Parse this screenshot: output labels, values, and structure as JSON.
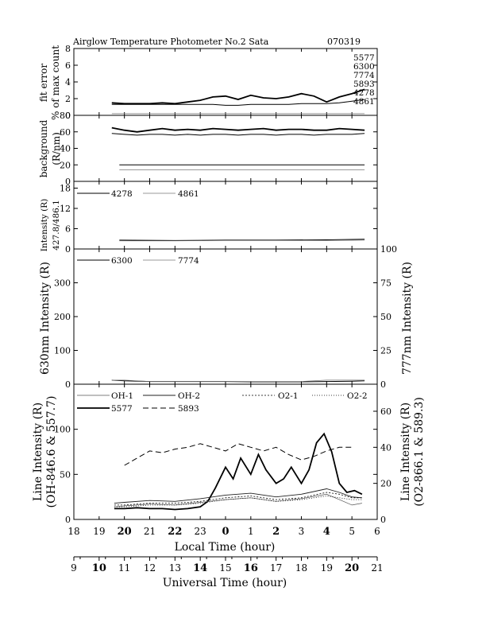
{
  "title": "Airglow Temperature Photometer No.2  Sata",
  "date": "070319",
  "chart_data": [
    {
      "type": "line",
      "ylabel_lines": [
        "fit error",
        "% of max count"
      ],
      "ylim": [
        0,
        8
      ],
      "yticks": [
        0,
        2,
        4,
        6,
        8
      ],
      "side_legend": [
        "5577",
        "6300",
        "7774",
        "5893",
        "4278",
        "4861"
      ],
      "series": [
        {
          "name": "5577",
          "x": [
            19.5,
            20.0,
            20.5,
            21.0,
            21.5,
            22.0,
            22.5,
            23.0,
            23.5,
            24.0,
            24.5,
            25.0,
            25.5,
            26.0,
            26.5,
            27.0,
            27.5,
            28.0,
            28.5,
            29.0,
            29.5
          ],
          "y": [
            1.5,
            1.4,
            1.4,
            1.4,
            1.5,
            1.4,
            1.6,
            1.8,
            2.2,
            2.3,
            1.9,
            2.4,
            2.1,
            2.0,
            2.2,
            2.6,
            2.3,
            1.6,
            2.2,
            2.6,
            3.1
          ]
        },
        {
          "name": "6300",
          "x": [
            19.5,
            20.0,
            20.5,
            21.0,
            21.5,
            22.0,
            22.5,
            23.0,
            23.5,
            24.0,
            24.5,
            25.0,
            25.5,
            26.0,
            26.5,
            27.0,
            27.5,
            28.0,
            28.5,
            29.0,
            29.5
          ],
          "y": [
            1.3,
            1.3,
            1.3,
            1.3,
            1.3,
            1.3,
            1.3,
            1.3,
            1.3,
            1.2,
            1.2,
            1.3,
            1.3,
            1.3,
            1.3,
            1.4,
            1.4,
            1.4,
            1.5,
            1.7,
            1.9
          ]
        },
        {
          "name": "4861",
          "x": [
            19.5,
            20.0,
            20.5,
            21.0,
            21.5,
            22.0,
            22.5,
            23.0,
            23.5,
            24.0,
            24.5,
            25.0,
            25.5,
            26.0,
            26.5,
            27.0,
            27.5,
            28.0,
            28.5,
            29.0,
            29.5
          ],
          "y": [
            0.2,
            0.2,
            0.2,
            0.2,
            0.2,
            0.2,
            0.2,
            0.2,
            0.2,
            0.2,
            0.2,
            0.2,
            0.2,
            0.2,
            0.2,
            0.2,
            0.2,
            0.2,
            0.2,
            0.2,
            0.2
          ]
        }
      ]
    },
    {
      "type": "line",
      "ylabel_lines": [
        "background",
        "(R/nm)"
      ],
      "ylim": [
        0,
        80
      ],
      "yticks": [
        0,
        20,
        40,
        60,
        80
      ],
      "series": [
        {
          "name": "5577",
          "x": [
            19.5,
            20.0,
            20.5,
            21.0,
            21.5,
            22.0,
            22.5,
            23.0,
            23.5,
            24.0,
            24.5,
            25.0,
            25.5,
            26.0,
            26.5,
            27.0,
            27.5,
            28.0,
            28.5,
            29.0,
            29.5
          ],
          "y": [
            65,
            62,
            60,
            62,
            64,
            62,
            63,
            62,
            64,
            63,
            62,
            63,
            64,
            62,
            63,
            63,
            62,
            62,
            64,
            63,
            62
          ]
        },
        {
          "name": "6300",
          "x": [
            19.5,
            20.0,
            20.5,
            21.0,
            21.5,
            22.0,
            22.5,
            23.0,
            23.5,
            24.0,
            24.5,
            25.0,
            25.5,
            26.0,
            26.5,
            27.0,
            27.5,
            28.0,
            28.5,
            29.0,
            29.5
          ],
          "y": [
            58,
            57,
            56,
            57,
            57,
            56,
            57,
            56,
            57,
            57,
            56,
            57,
            57,
            56,
            57,
            57,
            56,
            57,
            57,
            57,
            58
          ]
        },
        {
          "name": "4278",
          "x": [
            19.8,
            27.0,
            27.5,
            29.5
          ],
          "y": [
            20,
            20,
            20,
            20
          ]
        },
        {
          "name": "4861",
          "x": [
            19.8,
            22,
            24,
            26,
            28,
            29.5
          ],
          "y": [
            14,
            14,
            14,
            14,
            14,
            14
          ]
        }
      ]
    },
    {
      "type": "line",
      "ylabel_lines": [
        "Intensity (R)",
        "427.8/486.1"
      ],
      "ylim": [
        0,
        20
      ],
      "yticks": [
        0,
        6,
        12,
        18
      ],
      "legend": [
        "4278",
        "4861"
      ],
      "series": [
        {
          "name": "4278",
          "x": [
            19.8,
            22,
            24,
            26,
            28,
            29.5
          ],
          "y": [
            2.6,
            2.5,
            2.6,
            2.6,
            2.7,
            2.9
          ]
        },
        {
          "name": "4861",
          "x": [
            19.8,
            22,
            24,
            26,
            28,
            29.5
          ],
          "y": [
            2.4,
            2.4,
            2.5,
            2.5,
            2.5,
            2.6
          ]
        }
      ]
    },
    {
      "type": "line",
      "ylabel": "630nm Intensity (R)",
      "ylabel_right": "777nm Intensity (R)",
      "ylim": [
        0,
        400
      ],
      "ylim_right": [
        0,
        100
      ],
      "yticks": [
        0,
        100,
        200,
        300
      ],
      "yticks_right": [
        0,
        25,
        50,
        75,
        100
      ],
      "legend": [
        "6300",
        "7774"
      ],
      "series": [
        {
          "name": "6300",
          "x": [
            19.5,
            20.0,
            21.0,
            22.0,
            23.0,
            24.0,
            25.0,
            26.0,
            27.0,
            28.0,
            29.0,
            29.5
          ],
          "y": [
            12,
            10,
            8,
            8,
            8,
            8,
            7,
            7,
            7,
            8,
            9,
            10
          ]
        },
        {
          "name": "7774",
          "x": [
            19.5,
            20.0,
            21.0,
            22.0,
            23.0,
            24.0,
            25.0,
            26.0,
            27.0,
            28.0,
            29.0,
            29.5
          ],
          "y": [
            3,
            3,
            2,
            2,
            2,
            2,
            2,
            2,
            2,
            3,
            3,
            3
          ]
        }
      ]
    },
    {
      "type": "line",
      "ylabel_lines": [
        "Line Intensity (R)",
        "(OH-846.6 & 557.7)"
      ],
      "ylabel_right_lines": [
        "Line Intensity (R)",
        "(O2-866.1 & 589.3)"
      ],
      "ylim": [
        0,
        150
      ],
      "ylim_right": [
        0,
        75
      ],
      "yticks": [
        0,
        50,
        100
      ],
      "yticks_right": [
        0,
        20,
        40,
        60
      ],
      "legend": [
        "OH-1",
        "OH-2",
        "O2-1",
        "O2-2",
        "5577",
        "5893"
      ],
      "series": [
        {
          "name": "5577",
          "x": [
            19.6,
            20.0,
            20.5,
            21.0,
            21.5,
            22.0,
            22.5,
            23.0,
            23.3,
            23.6,
            24.0,
            24.3,
            24.6,
            25.0,
            25.3,
            25.6,
            26.0,
            26.3,
            26.6,
            27.0,
            27.3,
            27.6,
            27.9,
            28.2,
            28.5,
            28.8,
            29.1,
            29.4
          ],
          "y": [
            12,
            12,
            13,
            12,
            12,
            11,
            12,
            14,
            20,
            35,
            58,
            45,
            68,
            50,
            72,
            55,
            40,
            45,
            58,
            40,
            55,
            85,
            95,
            75,
            40,
            30,
            32,
            28
          ]
        },
        {
          "name": "5893",
          "x": [
            20.0,
            20.5,
            21.0,
            21.5,
            22.0,
            22.5,
            23.0,
            23.5,
            24.0,
            24.5,
            25.0,
            25.5,
            26.0,
            26.5,
            27.0,
            27.5,
            28.0,
            28.5,
            29.0
          ],
          "y": [
            30,
            34,
            38,
            37,
            39,
            40,
            42,
            40,
            38,
            42,
            40,
            38,
            40,
            36,
            33,
            35,
            38,
            40,
            40
          ]
        },
        {
          "name": "OH-1",
          "x": [
            19.6,
            20,
            21,
            22,
            23,
            24,
            25,
            26,
            27,
            28,
            28.5,
            29,
            29.4
          ],
          "y": [
            14,
            15,
            17,
            16,
            19,
            22,
            24,
            20,
            23,
            28,
            22,
            16,
            18
          ]
        },
        {
          "name": "OH-2",
          "x": [
            19.6,
            20,
            21,
            22,
            23,
            24,
            25,
            26,
            27,
            28,
            28.5,
            29,
            29.4
          ],
          "y": [
            18,
            19,
            21,
            20,
            23,
            27,
            29,
            25,
            28,
            34,
            30,
            25,
            24
          ]
        },
        {
          "name": "O2-1",
          "x": [
            19.6,
            20,
            21,
            22,
            23,
            24,
            25,
            26,
            27,
            28,
            28.5,
            29,
            29.4
          ],
          "y": [
            8,
            8,
            9,
            9,
            10,
            12,
            13,
            11,
            12,
            15,
            14,
            12,
            12
          ]
        },
        {
          "name": "O2-2",
          "x": [
            19.6,
            20,
            21,
            22,
            23,
            24,
            25,
            26,
            27,
            28,
            28.5,
            29,
            29.4
          ],
          "y": [
            7,
            7,
            8,
            8,
            9,
            11,
            12,
            10,
            11,
            13,
            12,
            11,
            11
          ]
        }
      ]
    }
  ],
  "xaxis_local": {
    "label": "Local Time (hour)",
    "ticks": [
      18,
      19,
      20,
      21,
      22,
      23,
      0,
      1,
      2,
      3,
      4,
      5,
      6
    ],
    "bold": [
      20,
      22,
      0,
      2,
      4
    ]
  },
  "xaxis_ut": {
    "label": "Universal Time (hour)",
    "ticks": [
      9,
      10,
      11,
      12,
      13,
      14,
      15,
      16,
      17,
      18,
      19,
      20,
      21
    ],
    "bold": [
      10,
      14,
      16,
      20
    ]
  }
}
